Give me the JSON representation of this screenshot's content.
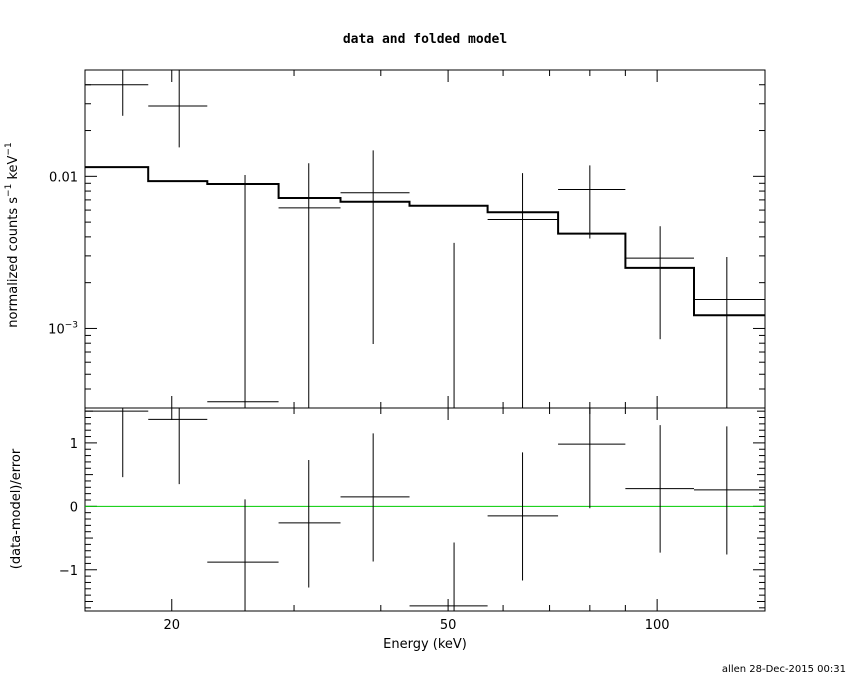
{
  "chart_data": [
    {
      "type": "scatter",
      "panel": "top",
      "title": "data and folded model",
      "ylabel": "normalized counts s^-1 keV^-1",
      "yscale": "log",
      "xscale": "log",
      "xlim": [
        15,
        143
      ],
      "ylim": [
        0.0003,
        0.05
      ],
      "yticks": [
        {
          "value": 0.01,
          "label": "0.01"
        },
        {
          "value": 0.001,
          "label": "10^-3"
        }
      ],
      "series": [
        {
          "points": [
            {
              "x": 17.0,
              "xlo": 15.0,
              "xhi": 18.5,
              "y": 0.04,
              "ylo": 0.025,
              "yhi": 0.05
            },
            {
              "x": 20.5,
              "xlo": 18.5,
              "xhi": 22.5,
              "y": 0.029,
              "ylo": 0.0155,
              "yhi": 0.05
            },
            {
              "x": 25.5,
              "xlo": 22.5,
              "xhi": 28.5,
              "y": 0.00033,
              "ylo": 0.0003,
              "yhi": 0.0102
            },
            {
              "x": 31.5,
              "xlo": 28.5,
              "xhi": 35.0,
              "y": 0.0062,
              "ylo": 0.0003,
              "yhi": 0.0122
            },
            {
              "x": 39.0,
              "xlo": 35.0,
              "xhi": 44.0,
              "y": 0.0078,
              "ylo": 0.00079,
              "yhi": 0.0148
            },
            {
              "x": 51.0,
              "xlo": 44.0,
              "xhi": 57.0,
              "y": 0.0003,
              "ylo": 0.0003,
              "yhi": 0.00365
            },
            {
              "x": 64.0,
              "xlo": 57.0,
              "xhi": 72.0,
              "y": 0.0052,
              "ylo": 0.0003,
              "yhi": 0.0105
            },
            {
              "x": 80.0,
              "xlo": 72.0,
              "xhi": 90.0,
              "y": 0.0082,
              "ylo": 0.0039,
              "yhi": 0.0118
            },
            {
              "x": 101.0,
              "xlo": 90.0,
              "xhi": 113.0,
              "y": 0.0029,
              "ylo": 0.00085,
              "yhi": 0.0047
            },
            {
              "x": 126.0,
              "xlo": 113.0,
              "xhi": 143.0,
              "y": 0.00155,
              "ylo": 0.0003,
              "yhi": 0.00295
            }
          ]
        }
      ],
      "model": [
        {
          "xlo": 15.0,
          "xhi": 18.5,
          "y": 0.0115
        },
        {
          "xlo": 18.5,
          "xhi": 22.5,
          "y": 0.0093
        },
        {
          "xlo": 22.5,
          "xhi": 28.5,
          "y": 0.0089
        },
        {
          "xlo": 28.5,
          "xhi": 35.0,
          "y": 0.0072
        },
        {
          "xlo": 35.0,
          "xhi": 44.0,
          "y": 0.0068
        },
        {
          "xlo": 44.0,
          "xhi": 57.0,
          "y": 0.0064
        },
        {
          "xlo": 57.0,
          "xhi": 72.0,
          "y": 0.0058
        },
        {
          "xlo": 72.0,
          "xhi": 90.0,
          "y": 0.0042
        },
        {
          "xlo": 90.0,
          "xhi": 113.0,
          "y": 0.0025
        },
        {
          "xlo": 113.0,
          "xhi": 143.0,
          "y": 0.00122
        }
      ]
    },
    {
      "type": "scatter",
      "panel": "bottom",
      "xlabel": "Energy (keV)",
      "ylabel": "(data-model)/error",
      "xscale": "log",
      "xlim": [
        15,
        143
      ],
      "ylim": [
        -1.65,
        1.55
      ],
      "xticks": [
        {
          "value": 20,
          "label": "20"
        },
        {
          "value": 50,
          "label": "50"
        },
        {
          "value": 100,
          "label": "100"
        }
      ],
      "yticks": [
        {
          "value": 1,
          "label": "1"
        },
        {
          "value": 0,
          "label": "0"
        },
        {
          "value": -1,
          "label": "−1"
        }
      ],
      "reference_line": {
        "y": 0,
        "color": "#00cc00"
      },
      "series": [
        {
          "points": [
            {
              "x": 17.0,
              "xlo": 15.0,
              "xhi": 18.5,
              "y": 1.5,
              "ylo": 0.46,
              "yhi": 1.55
            },
            {
              "x": 20.5,
              "xlo": 18.5,
              "xhi": 22.5,
              "y": 1.37,
              "ylo": 0.35,
              "yhi": 1.55
            },
            {
              "x": 25.5,
              "xlo": 22.5,
              "xhi": 28.5,
              "y": -0.88,
              "ylo": -1.65,
              "yhi": 0.11
            },
            {
              "x": 31.5,
              "xlo": 28.5,
              "xhi": 35.0,
              "y": -0.26,
              "ylo": -1.28,
              "yhi": 0.73
            },
            {
              "x": 39.0,
              "xlo": 35.0,
              "xhi": 44.0,
              "y": 0.15,
              "ylo": -0.87,
              "yhi": 1.15
            },
            {
              "x": 51.0,
              "xlo": 44.0,
              "xhi": 57.0,
              "y": -1.57,
              "ylo": -1.65,
              "yhi": -0.57
            },
            {
              "x": 64.0,
              "xlo": 57.0,
              "xhi": 72.0,
              "y": -0.15,
              "ylo": -1.17,
              "yhi": 0.85
            },
            {
              "x": 80.0,
              "xlo": 72.0,
              "xhi": 90.0,
              "y": 0.98,
              "ylo": -0.03,
              "yhi": 1.55
            },
            {
              "x": 101.0,
              "xlo": 90.0,
              "xhi": 113.0,
              "y": 0.28,
              "ylo": -0.73,
              "yhi": 1.28
            },
            {
              "x": 126.0,
              "xlo": 113.0,
              "xhi": 143.0,
              "y": 0.26,
              "ylo": -0.76,
              "yhi": 1.26
            }
          ]
        }
      ]
    }
  ],
  "footer": "allen 28-Dec-2015 00:31"
}
